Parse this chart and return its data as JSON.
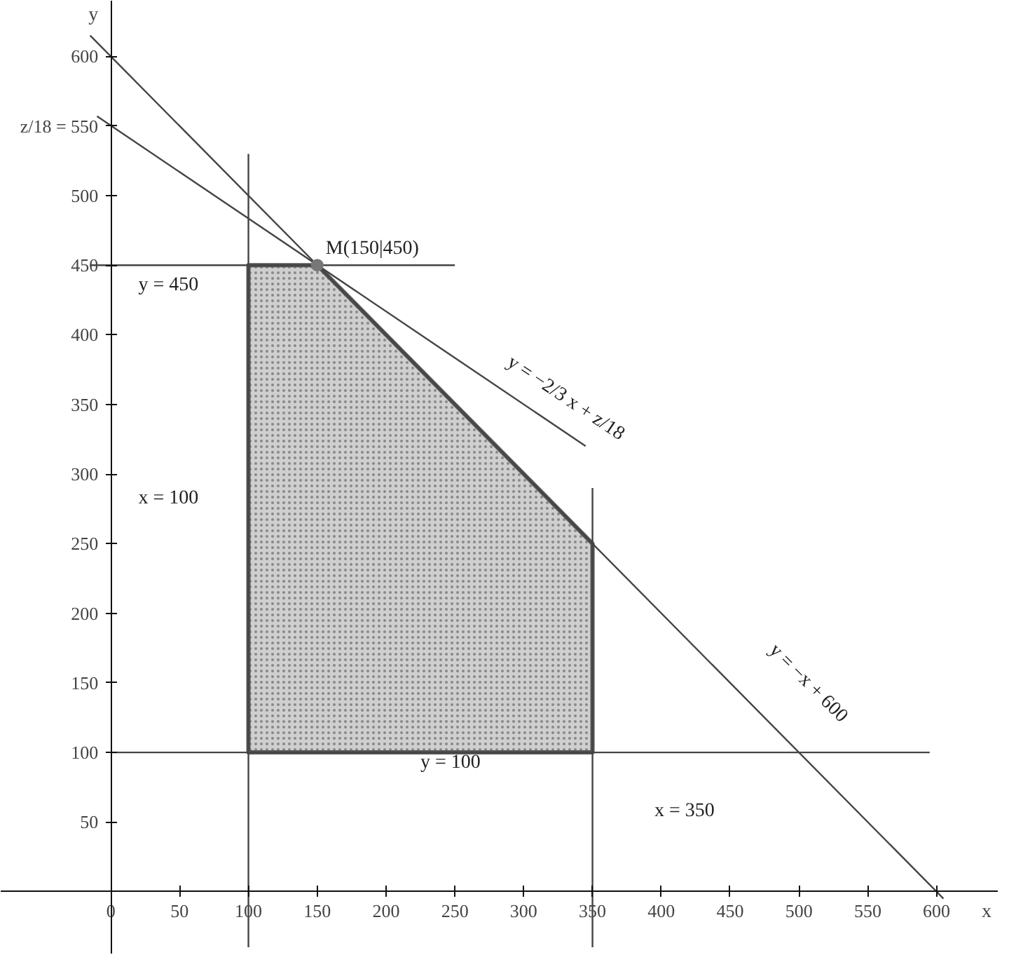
{
  "chart_data": {
    "type": "line",
    "xlabel": "x",
    "ylabel": "y",
    "xlim": [
      -80,
      645
    ],
    "ylim": [
      -45,
      640
    ],
    "xticks": [
      0,
      50,
      100,
      150,
      200,
      250,
      300,
      350,
      400,
      450,
      500,
      550,
      600
    ],
    "yticks": [
      50,
      100,
      150,
      200,
      250,
      300,
      350,
      400,
      450,
      500,
      {
        "value": 550,
        "label": "z/18 = 550"
      },
      600
    ],
    "grid": false,
    "line_style": "solid",
    "marker": "none",
    "series": [
      {
        "type": "area",
        "color": "#cfcfcf",
        "x": [
          100,
          100,
          150,
          350,
          350,
          100
        ],
        "values": [
          100,
          450,
          450,
          250,
          100,
          100
        ]
      },
      {
        "color": "#444444",
        "x": [
          -15,
          605
        ],
        "values": [
          615,
          -5
        ]
      },
      {
        "color": "#444444",
        "x": [
          -10,
          345
        ],
        "values": [
          557,
          320
        ]
      },
      {
        "color": "#444444",
        "x": [
          100,
          100
        ],
        "values": [
          -40,
          530
        ]
      },
      {
        "color": "#444444",
        "x": [
          350,
          350
        ],
        "values": [
          -40,
          290
        ]
      },
      {
        "color": "#444444",
        "x": [
          -15,
          250
        ],
        "values": [
          450,
          450
        ]
      },
      {
        "color": "#444444",
        "x": [
          0,
          595
        ],
        "values": [
          100,
          100
        ]
      },
      {
        "type": "scatter",
        "color": "#777777",
        "marker": "circle",
        "x": [
          150
        ],
        "values": [
          450
        ]
      }
    ],
    "annotations": [
      {
        "text": "M(150|450)",
        "x": 150,
        "y": 450
      },
      "y = 450",
      "x = 100",
      "y = 100",
      "x = 350",
      "y = −2/3 x + z/18",
      "y = −x + 600"
    ]
  }
}
